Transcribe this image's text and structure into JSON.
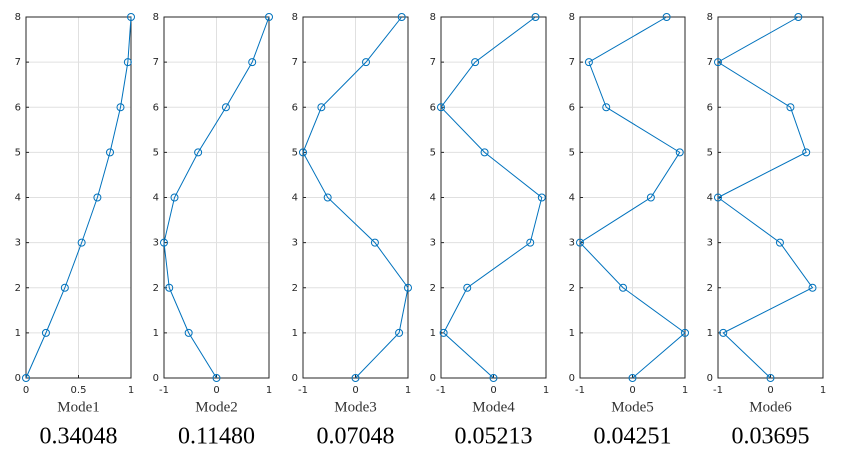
{
  "chart_data": [
    {
      "type": "line",
      "color": "#0072bd",
      "xlabel": "Mode1",
      "caption": "0.34048",
      "grid": true,
      "x": [
        0,
        0.19,
        0.37,
        0.53,
        0.68,
        0.8,
        0.9,
        0.97,
        1
      ],
      "values": [
        0,
        1,
        2,
        3,
        4,
        5,
        6,
        7,
        8
      ],
      "xlim": [
        0,
        1
      ],
      "xticks": [
        0,
        0.5,
        1
      ],
      "ylim": [
        0,
        8
      ],
      "yticks": [
        0,
        1,
        2,
        3,
        4,
        5,
        6,
        7,
        8
      ]
    },
    {
      "type": "line",
      "color": "#0072bd",
      "xlabel": "Mode2",
      "caption": "0.11480",
      "grid": true,
      "x": [
        0,
        -0.53,
        -0.9,
        -1,
        -0.8,
        -0.35,
        0.18,
        0.68,
        1
      ],
      "values": [
        0,
        1,
        2,
        3,
        4,
        5,
        6,
        7,
        8
      ],
      "xlim": [
        -1,
        1
      ],
      "xticks": [
        -1,
        0,
        1
      ],
      "ylim": [
        0,
        8
      ],
      "yticks": [
        0,
        1,
        2,
        3,
        4,
        5,
        6,
        7,
        8
      ]
    },
    {
      "type": "line",
      "color": "#0072bd",
      "xlabel": "Mode3",
      "caption": "0.07048",
      "grid": true,
      "x": [
        0,
        0.83,
        1,
        0.37,
        -0.53,
        -1,
        -0.65,
        0.2,
        0.88
      ],
      "values": [
        0,
        1,
        2,
        3,
        4,
        5,
        6,
        7,
        8
      ],
      "xlim": [
        -1,
        1
      ],
      "xticks": [
        -1,
        0,
        1
      ],
      "ylim": [
        0,
        8
      ],
      "yticks": [
        0,
        1,
        2,
        3,
        4,
        5,
        6,
        7,
        8
      ]
    },
    {
      "type": "line",
      "color": "#0072bd",
      "xlabel": "Mode4",
      "caption": "0.05213",
      "grid": true,
      "x": [
        0,
        -0.95,
        -0.5,
        0.7,
        0.92,
        -0.17,
        -1,
        -0.35,
        0.8
      ],
      "values": [
        0,
        1,
        2,
        3,
        4,
        5,
        6,
        7,
        8
      ],
      "xlim": [
        -1,
        1
      ],
      "xticks": [
        -1,
        0,
        1
      ],
      "ylim": [
        0,
        8
      ],
      "yticks": [
        0,
        1,
        2,
        3,
        4,
        5,
        6,
        7,
        8
      ]
    },
    {
      "type": "line",
      "color": "#0072bd",
      "xlabel": "Mode5",
      "caption": "0.04251",
      "grid": true,
      "x": [
        0,
        1,
        -0.18,
        -1,
        0.35,
        0.9,
        -0.5,
        -0.83,
        0.65
      ],
      "values": [
        0,
        1,
        2,
        3,
        4,
        5,
        6,
        7,
        8
      ],
      "xlim": [
        -1,
        1
      ],
      "xticks": [
        -1,
        0,
        1
      ],
      "ylim": [
        0,
        8
      ],
      "yticks": [
        0,
        1,
        2,
        3,
        4,
        5,
        6,
        7,
        8
      ]
    },
    {
      "type": "line",
      "color": "#0072bd",
      "xlabel": "Mode6",
      "caption": "0.03695",
      "grid": true,
      "x": [
        0,
        -0.9,
        0.8,
        0.18,
        -1,
        0.68,
        0.38,
        -1,
        0.53
      ],
      "values": [
        0,
        1,
        2,
        3,
        4,
        5,
        6,
        7,
        8
      ],
      "xlim": [
        -1,
        1
      ],
      "xticks": [
        -1,
        0,
        1
      ],
      "ylim": [
        0,
        8
      ],
      "yticks": [
        0,
        1,
        2,
        3,
        4,
        5,
        6,
        7,
        8
      ]
    }
  ]
}
